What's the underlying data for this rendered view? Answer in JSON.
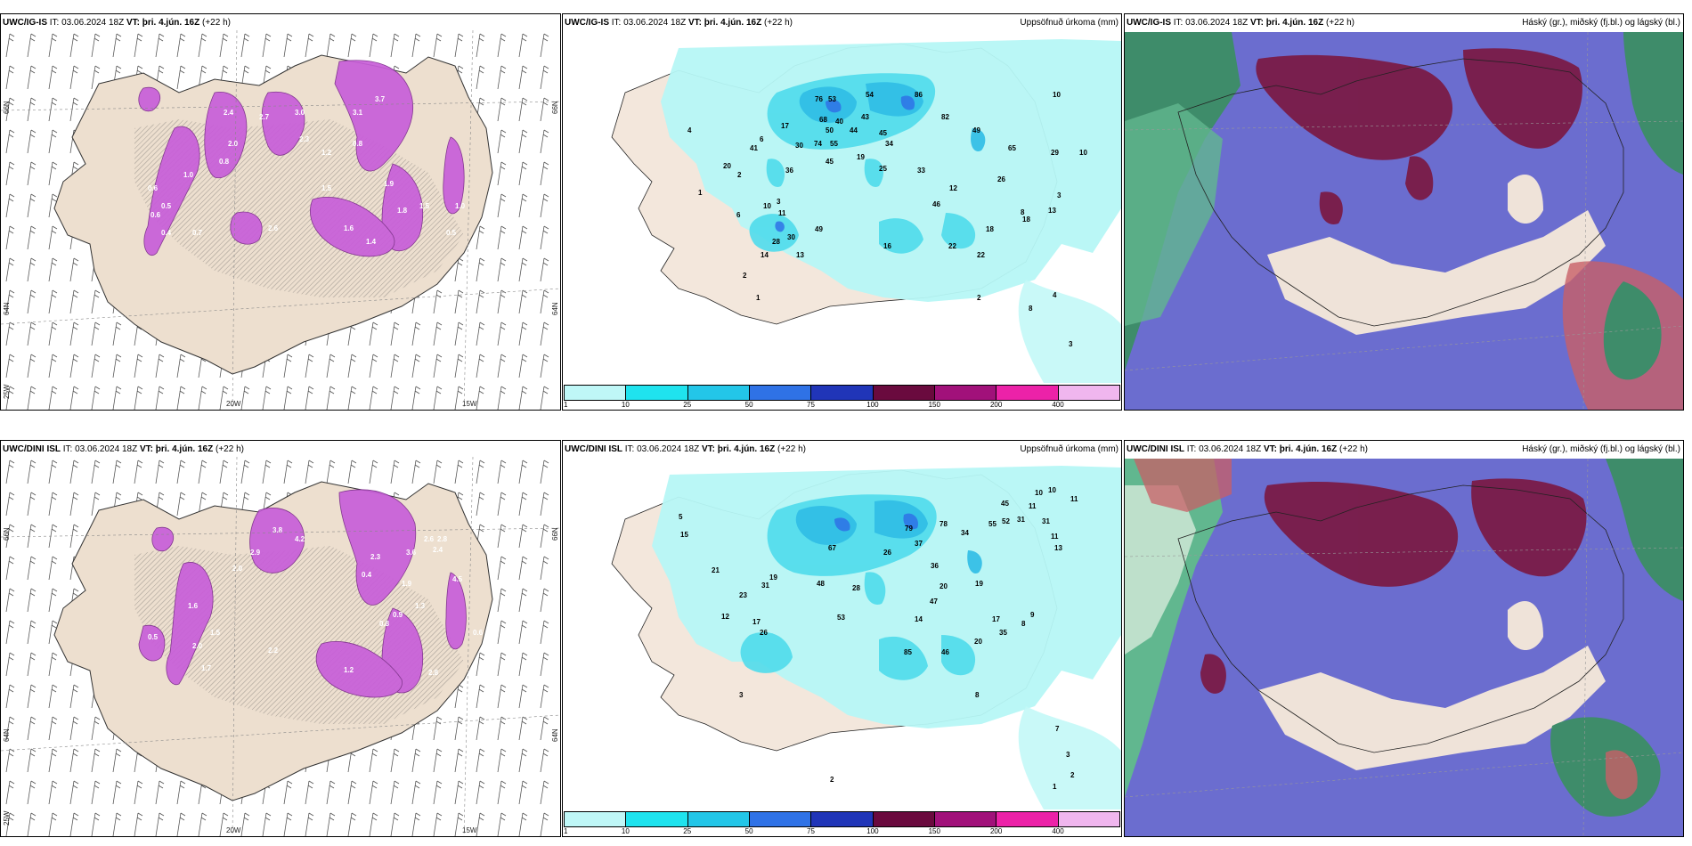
{
  "colorbar": {
    "ticks": [
      "1",
      "10",
      "25",
      "50",
      "75",
      "100",
      "150",
      "200",
      "400"
    ],
    "colors": [
      "#bff7f7",
      "#1fe3ee",
      "#23c6e8",
      "#2f72e6",
      "#2035b8",
      "#6a0a3e",
      "#a1117a",
      "#ec22a8",
      "#f0b6ee"
    ]
  },
  "axis_labels": {
    "lat66": "66N",
    "lat64": "64N",
    "lon25": "25W",
    "lon20": "20W",
    "lon15": "15W"
  },
  "top": {
    "snow": {
      "model": "UWC/IG-IS",
      "it_label": "IT:",
      "it_value": "03.06.2024 18Z",
      "vt_label": "VT:",
      "vt_value": "þri. 4.jún. 16Z",
      "lead": "(+22 h)"
    },
    "precip": {
      "model": "UWC/IG-IS",
      "it_label": "IT:",
      "it_value": "03.06.2024 18Z",
      "vt_label": "VT:",
      "vt_value": "þri. 4.jún. 16Z",
      "lead": "(+22 h)",
      "right": "Uppsöfnuð úrkoma (mm)"
    },
    "cloud": {
      "model": "UWC/IG-IS",
      "it_label": "IT:",
      "it_value": "03.06.2024 18Z",
      "vt_label": "VT:",
      "vt_value": "þri. 4.jún. 16Z",
      "lead": "(+22 h)",
      "right": "Háský (gr.), miðský (fj.bl.) og lágský (bl.)"
    }
  },
  "bottom": {
    "snow": {
      "model": "UWC/DINI ISL",
      "it_label": "IT:",
      "it_value": "03.06.2024 18Z",
      "vt_label": "VT:",
      "vt_value": "þri. 4.jún. 16Z",
      "lead": "(+22 h)"
    },
    "precip": {
      "model": "UWC/DINI ISL",
      "it_label": "IT:",
      "it_value": "03.06.2024 18Z",
      "vt_label": "VT:",
      "vt_value": "þri. 4.jún. 16Z",
      "lead": "(+22 h)",
      "right": "Uppsöfnuð úrkoma (mm)"
    },
    "cloud": {
      "model": "UWC/DINI ISL",
      "it_label": "IT:",
      "it_value": "03.06.2024 18Z",
      "vt_label": "VT:",
      "vt_value": "þri. 4.jún. 16Z",
      "lead": "(+22 h)",
      "right": "Háský (gr.), miðský (fj.bl.) og lágský (bl.)"
    }
  },
  "precip_values_top": [
    "76",
    "53",
    "54",
    "86",
    "82",
    "49",
    "10",
    "40",
    "44",
    "45",
    "43",
    "68",
    "50",
    "74",
    "55",
    "34",
    "45",
    "19",
    "25",
    "33",
    "65",
    "29",
    "10",
    "17",
    "36",
    "30",
    "20",
    "41",
    "6",
    "2",
    "4",
    "1",
    "3",
    "6",
    "10",
    "11",
    "12",
    "26",
    "46",
    "18",
    "8",
    "13",
    "3",
    "49",
    "18",
    "28",
    "30",
    "22",
    "16",
    "14",
    "22",
    "13",
    "2",
    "4",
    "8",
    "3",
    "2",
    "1"
  ],
  "precip_values_bottom": [
    "10",
    "10",
    "11",
    "11",
    "45",
    "52",
    "55",
    "31",
    "79",
    "78",
    "34",
    "37",
    "26",
    "36",
    "20",
    "19",
    "47",
    "17",
    "35",
    "20",
    "14",
    "85",
    "46",
    "53",
    "31",
    "11",
    "13",
    "9",
    "8",
    "8",
    "12",
    "23",
    "21",
    "31",
    "17",
    "26",
    "19",
    "67",
    "48",
    "28",
    "7",
    "3",
    "2",
    "1",
    "2",
    "5",
    "15",
    "3"
  ],
  "snow_values_top": [
    "3.7",
    "3.1",
    "2.7",
    "2.4",
    "2.0",
    "1.9",
    "1.5",
    "1.2",
    "0.8",
    "0.5",
    "0.6",
    "0.8",
    "1.0",
    "2.6",
    "1.6",
    "1.8",
    "1.4",
    "1.0",
    "2.3",
    "0.4",
    "3.0",
    "0.7",
    "0.5",
    "1.5",
    "0.6"
  ],
  "snow_values_bottom": [
    "2.6",
    "2.8",
    "2.4",
    "3.6",
    "2.3",
    "2.0",
    "1.6",
    "1.5",
    "4.5",
    "0.9",
    "0.8",
    "1.3",
    "2.2",
    "1.2",
    "2.8",
    "0.6",
    "0.4",
    "1.9",
    "2.0",
    "1.7",
    "4.2",
    "0.5",
    "3.8",
    "2.9"
  ]
}
